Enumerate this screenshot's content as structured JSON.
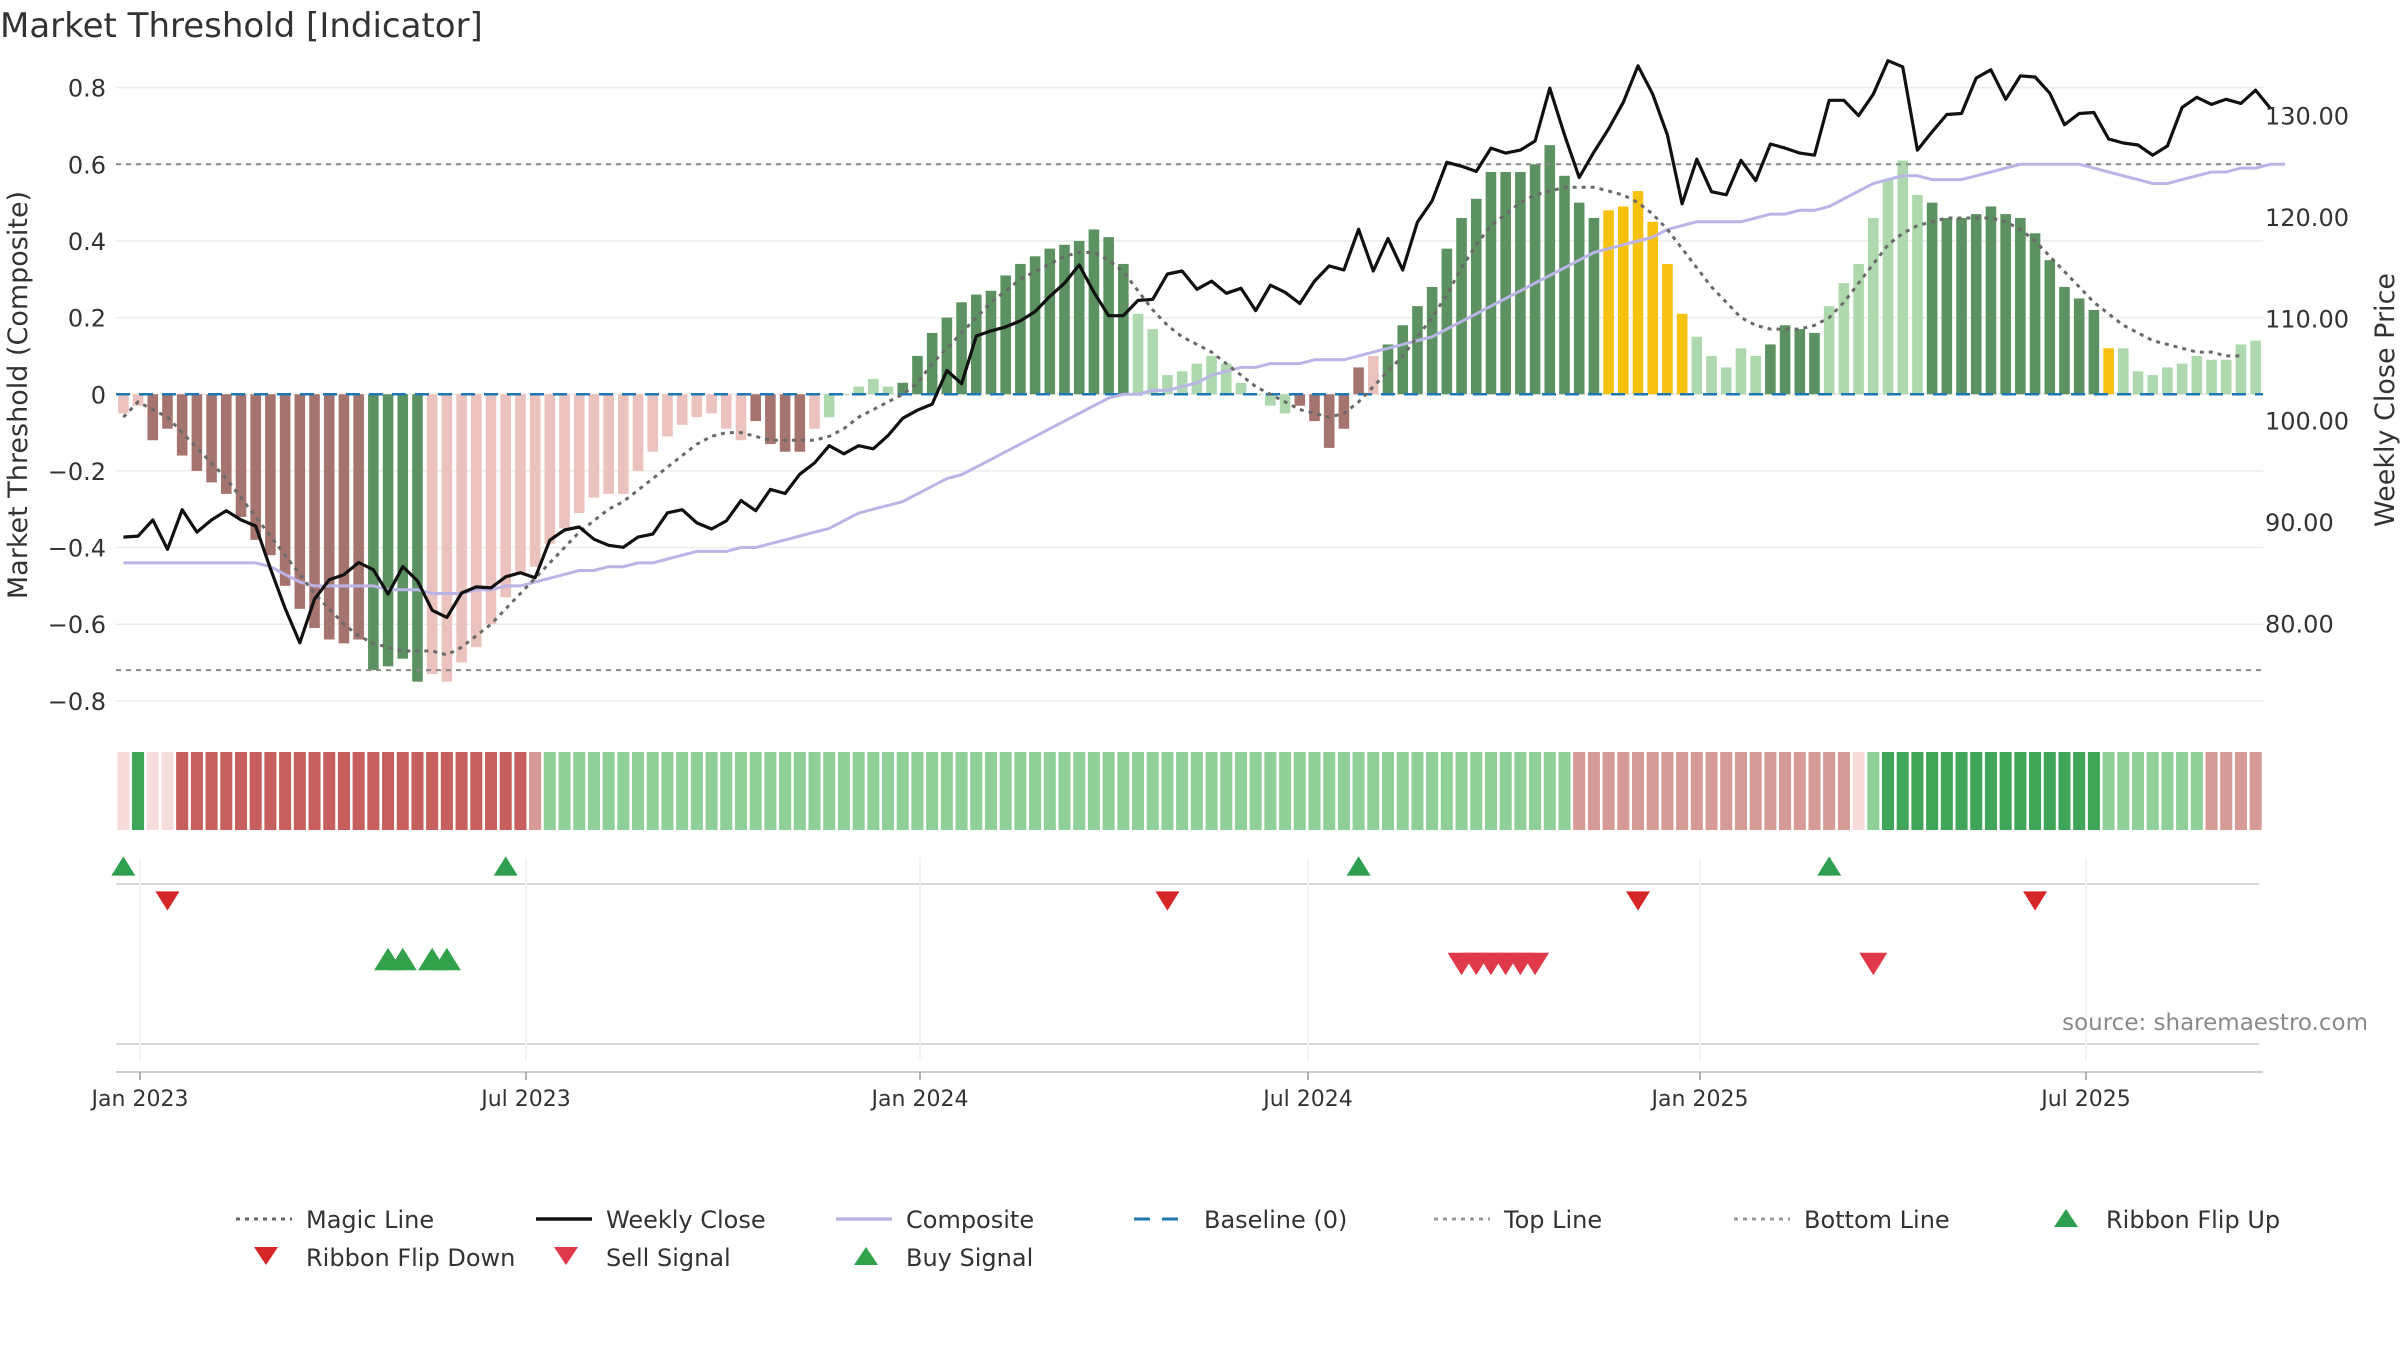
{
  "title": "Market Threshold [Indicator]",
  "source": "source: sharemaestro.com",
  "axes": {
    "y_left_label": "Market Threshold (Composite)",
    "y_right_label": "Weekly Close Price",
    "y_left_ticks": [
      "0.8",
      "0.6",
      "0.4",
      "0.2",
      "0",
      "−0.2",
      "−0.4",
      "−0.6",
      "−0.8"
    ],
    "y_right_ticks": [
      "130.00",
      "120.00",
      "110.00",
      "100.00",
      "90.00",
      "80.00"
    ],
    "x_ticks": [
      "Jan 2023",
      "Jul 2023",
      "Jan 2024",
      "Jul 2024",
      "Jan 2025",
      "Jul 2025"
    ]
  },
  "legend": [
    {
      "label": "Magic Line",
      "type": "dotted",
      "color": "#666666"
    },
    {
      "label": "Weekly Close",
      "type": "solid",
      "color": "#111111"
    },
    {
      "label": "Composite",
      "type": "solid",
      "color": "#bbb4e6"
    },
    {
      "label": "Baseline (0)",
      "type": "dashed",
      "color": "#1f77b4"
    },
    {
      "label": "Top Line",
      "type": "dotted",
      "color": "#999999"
    },
    {
      "label": "Bottom Line",
      "type": "dotted",
      "color": "#999999"
    },
    {
      "label": "Ribbon Flip Up",
      "type": "tri-up",
      "color": "#2e9e4f"
    },
    {
      "label": "Ribbon Flip Down",
      "type": "tri-down",
      "color": "#d62728"
    },
    {
      "label": "Sell Signal",
      "type": "tri-down",
      "color": "#e0394a"
    },
    {
      "label": "Buy Signal",
      "type": "tri-up",
      "color": "#33a04a"
    }
  ],
  "colors": {
    "red_dark": "#a6746f",
    "red_light": "#ebc2bd",
    "green_dark": "#5c9161",
    "green_light": "#aed8ae",
    "gold": "#f6c10f",
    "ribbon_red": "#c85f5f",
    "ribbon_green": "#3fa659",
    "ribbon_pale": "#f7dcdc"
  },
  "chart_data": {
    "type": "bar",
    "x_start": "2022-12-26",
    "x_step_days": 7,
    "ylim_left": [
      -0.85,
      0.82
    ],
    "ylim_right": [
      70.5,
      133.5
    ],
    "top_line": 0.6,
    "bottom_line": -0.72,
    "baseline": 0,
    "composite_bars": [
      -0.05,
      -0.03,
      -0.12,
      -0.09,
      -0.16,
      -0.2,
      -0.23,
      -0.26,
      -0.32,
      -0.38,
      -0.42,
      -0.5,
      -0.56,
      -0.61,
      -0.64,
      -0.65,
      -0.64,
      -0.72,
      -0.71,
      -0.69,
      -0.75,
      -0.73,
      -0.75,
      -0.7,
      -0.66,
      -0.6,
      -0.53,
      -0.47,
      -0.45,
      -0.39,
      -0.35,
      -0.31,
      -0.27,
      -0.26,
      -0.26,
      -0.2,
      -0.15,
      -0.11,
      -0.08,
      -0.06,
      -0.05,
      -0.09,
      -0.12,
      -0.07,
      -0.13,
      -0.15,
      -0.15,
      -0.09,
      -0.06,
      0,
      0.02,
      0.04,
      0.02,
      0.03,
      0.1,
      0.16,
      0.2,
      0.24,
      0.26,
      0.27,
      0.31,
      0.34,
      0.36,
      0.38,
      0.39,
      0.4,
      0.43,
      0.41,
      0.34,
      0.21,
      0.17,
      0.05,
      0.06,
      0.08,
      0.1,
      0.08,
      0.03,
      0,
      -0.03,
      -0.05,
      -0.03,
      -0.07,
      -0.14,
      -0.09,
      0.07,
      0.1,
      0.13,
      0.18,
      0.23,
      0.28,
      0.38,
      0.46,
      0.51,
      0.58,
      0.58,
      0.58,
      0.6,
      0.65,
      0.57,
      0.5,
      0.46,
      0.48,
      0.49,
      0.53,
      0.45,
      0.34,
      0.21,
      0.15,
      0.1,
      0.07,
      0.12,
      0.1,
      0.13,
      0.18,
      0.17,
      0.16,
      0.23,
      0.29,
      0.34,
      0.46,
      0.56,
      0.61,
      0.52,
      0.5,
      0.46,
      0.46,
      0.47,
      0.49,
      0.47,
      0.46,
      0.42,
      0.35,
      0.28,
      0.25,
      0.22,
      0.12,
      0.12,
      0.06,
      0.05,
      0.07,
      0.08,
      0.1,
      0.09,
      0.09,
      0.13,
      0.14
    ],
    "bar_tones": "rrRRRRRRRRRRRRRRRGGGGrrrrrrrrrrrrrrrrrrrrrrRRRRrgggggGGGGGGGGGGGGGGGGgggggggggggRRRRRrGGGGGGGGGGGGGGGYYYYYYgggggGGGGgggggggGGGGGGGGGGGGYgggggggggggggggggggggGGGGG",
    "gold_bars": [
      17,
      18,
      20,
      21,
      92,
      93,
      94,
      95,
      96,
      97,
      98,
      121
    ],
    "magic_line": [
      -0.06,
      -0.02,
      -0.04,
      -0.06,
      -0.1,
      -0.14,
      -0.18,
      -0.22,
      -0.27,
      -0.32,
      -0.37,
      -0.42,
      -0.47,
      -0.52,
      -0.56,
      -0.6,
      -0.63,
      -0.65,
      -0.66,
      -0.67,
      -0.67,
      -0.67,
      -0.68,
      -0.66,
      -0.63,
      -0.6,
      -0.56,
      -0.52,
      -0.48,
      -0.44,
      -0.4,
      -0.36,
      -0.33,
      -0.3,
      -0.28,
      -0.25,
      -0.22,
      -0.19,
      -0.16,
      -0.13,
      -0.11,
      -0.1,
      -0.1,
      -0.11,
      -0.12,
      -0.12,
      -0.12,
      -0.12,
      -0.11,
      -0.09,
      -0.06,
      -0.04,
      -0.02,
      0,
      0.03,
      0.08,
      0.12,
      0.16,
      0.2,
      0.24,
      0.27,
      0.3,
      0.32,
      0.34,
      0.36,
      0.37,
      0.37,
      0.35,
      0.32,
      0.27,
      0.22,
      0.18,
      0.15,
      0.13,
      0.11,
      0.08,
      0.05,
      0.02,
      0,
      -0.02,
      -0.04,
      -0.05,
      -0.06,
      -0.05,
      -0.02,
      0.02,
      0.06,
      0.1,
      0.15,
      0.2,
      0.26,
      0.33,
      0.39,
      0.44,
      0.47,
      0.5,
      0.52,
      0.53,
      0.54,
      0.54,
      0.54,
      0.53,
      0.52,
      0.5,
      0.47,
      0.43,
      0.38,
      0.33,
      0.28,
      0.24,
      0.2,
      0.18,
      0.17,
      0.17,
      0.17,
      0.18,
      0.2,
      0.24,
      0.29,
      0.34,
      0.39,
      0.42,
      0.44,
      0.45,
      0.46,
      0.46,
      0.46,
      0.46,
      0.45,
      0.43,
      0.4,
      0.36,
      0.32,
      0.28,
      0.24,
      0.21,
      0.18,
      0.16,
      0.14,
      0.13,
      0.12,
      0.11,
      0.11,
      0.1,
      0.1
    ],
    "weekly_close": [
      88.5,
      88.6,
      90.2,
      87.3,
      91.2,
      89,
      90.2,
      91.1,
      90.2,
      89.6,
      85.4,
      81.5,
      78.1,
      82.4,
      84.3,
      84.8,
      86,
      85.3,
      82.9,
      85.6,
      84.2,
      81.3,
      80.6,
      83,
      83.6,
      83.5,
      84.6,
      85,
      84.5,
      88.2,
      89.2,
      89.5,
      88.3,
      87.7,
      87.5,
      88.5,
      88.8,
      90.9,
      91.2,
      89.9,
      89.3,
      90.1,
      92.1,
      91.1,
      93.2,
      92.8,
      94.7,
      95.8,
      97.5,
      96.7,
      97.5,
      97.2,
      98.5,
      100.2,
      101,
      101.6,
      104.9,
      103.6,
      108.3,
      108.8,
      109.2,
      109.8,
      110.7,
      112.2,
      113.5,
      115.3,
      112.6,
      110.3,
      110.3,
      111.8,
      111.9,
      114.4,
      114.7,
      112.9,
      113.7,
      112.5,
      113,
      110.8,
      113.3,
      112.6,
      111.5,
      113.7,
      115.2,
      114.8,
      118.8,
      114.7,
      117.9,
      114.8,
      119.5,
      121.6,
      125.4,
      125,
      124.5,
      126.8,
      126.3,
      126.6,
      127.5,
      132.7,
      128.1,
      123.9,
      126.4,
      128.7,
      131.3,
      134.9,
      132.1,
      128.1,
      121.3,
      125.7,
      122.5,
      122.2,
      125.6,
      123.6,
      127.2,
      126.8,
      126.3,
      126.1,
      131.5,
      131.5,
      130,
      132.1,
      135.4,
      134.8,
      126.6,
      128.4,
      130.1,
      130.2,
      133.7,
      134.5,
      131.6,
      133.9,
      133.8,
      132.2,
      129.1,
      130.2,
      130.3,
      127.7,
      127.3,
      127.1,
      126.1,
      127,
      130.8,
      131.8,
      131.1,
      131.6,
      131.2,
      132.5,
      130.7
    ],
    "composite_line": [
      -0.44,
      -0.44,
      -0.44,
      -0.44,
      -0.44,
      -0.44,
      -0.44,
      -0.44,
      -0.44,
      -0.44,
      -0.45,
      -0.47,
      -0.49,
      -0.5,
      -0.5,
      -0.5,
      -0.5,
      -0.5,
      -0.51,
      -0.51,
      -0.51,
      -0.52,
      -0.52,
      -0.52,
      -0.51,
      -0.51,
      -0.5,
      -0.5,
      -0.49,
      -0.48,
      -0.47,
      -0.46,
      -0.46,
      -0.45,
      -0.45,
      -0.44,
      -0.44,
      -0.43,
      -0.42,
      -0.41,
      -0.41,
      -0.41,
      -0.4,
      -0.4,
      -0.39,
      -0.38,
      -0.37,
      -0.36,
      -0.35,
      -0.33,
      -0.31,
      -0.3,
      -0.29,
      -0.28,
      -0.26,
      -0.24,
      -0.22,
      -0.21,
      -0.19,
      -0.17,
      -0.15,
      -0.13,
      -0.11,
      -0.09,
      -0.07,
      -0.05,
      -0.03,
      -0.01,
      0,
      0,
      0.01,
      0.01,
      0.02,
      0.03,
      0.05,
      0.06,
      0.07,
      0.07,
      0.08,
      0.08,
      0.08,
      0.09,
      0.09,
      0.09,
      0.1,
      0.11,
      0.12,
      0.13,
      0.14,
      0.15,
      0.17,
      0.19,
      0.21,
      0.23,
      0.25,
      0.27,
      0.29,
      0.31,
      0.33,
      0.35,
      0.37,
      0.38,
      0.39,
      0.4,
      0.41,
      0.43,
      0.44,
      0.45,
      0.45,
      0.45,
      0.45,
      0.46,
      0.47,
      0.47,
      0.48,
      0.48,
      0.49,
      0.51,
      0.53,
      0.55,
      0.56,
      0.57,
      0.57,
      0.56,
      0.56,
      0.56,
      0.57,
      0.58,
      0.59,
      0.6,
      0.6,
      0.6,
      0.6,
      0.6,
      0.59,
      0.58,
      0.57,
      0.56,
      0.55,
      0.55,
      0.56,
      0.57,
      0.58,
      0.58,
      0.59,
      0.59,
      0.6,
      0.6
    ],
    "ribbon": "PGPPRRRRRRRRRRRRRRRRRRRRRRRRrggggggggggggggggggggggggggggggggggggggggggggggggggggggggggggggggggggggrrrrrrrrrrrrrrrrrrrPgGGGGGGGGGGGGGGGgggggggrrrrrrrrrrrrrrrrrrgggggggggggggrrrrrrrrrrrrrrrrrr",
    "ribbon_flip_up": [
      "2022-12-26",
      "2023-06-26",
      "2024-08-05",
      "2025-03-17"
    ],
    "ribbon_flip_down": [
      "2023-01-16",
      "2024-05-06",
      "2024-12-16",
      "2025-06-23"
    ],
    "buy_signals": [
      "2023-05-01",
      "2023-05-08",
      "2023-05-22",
      "2023-05-29"
    ],
    "sell_signals": [
      "2024-09-23",
      "2024-09-30",
      "2024-10-07",
      "2024-10-14",
      "2024-10-21",
      "2024-10-28",
      "2025-04-07"
    ]
  }
}
